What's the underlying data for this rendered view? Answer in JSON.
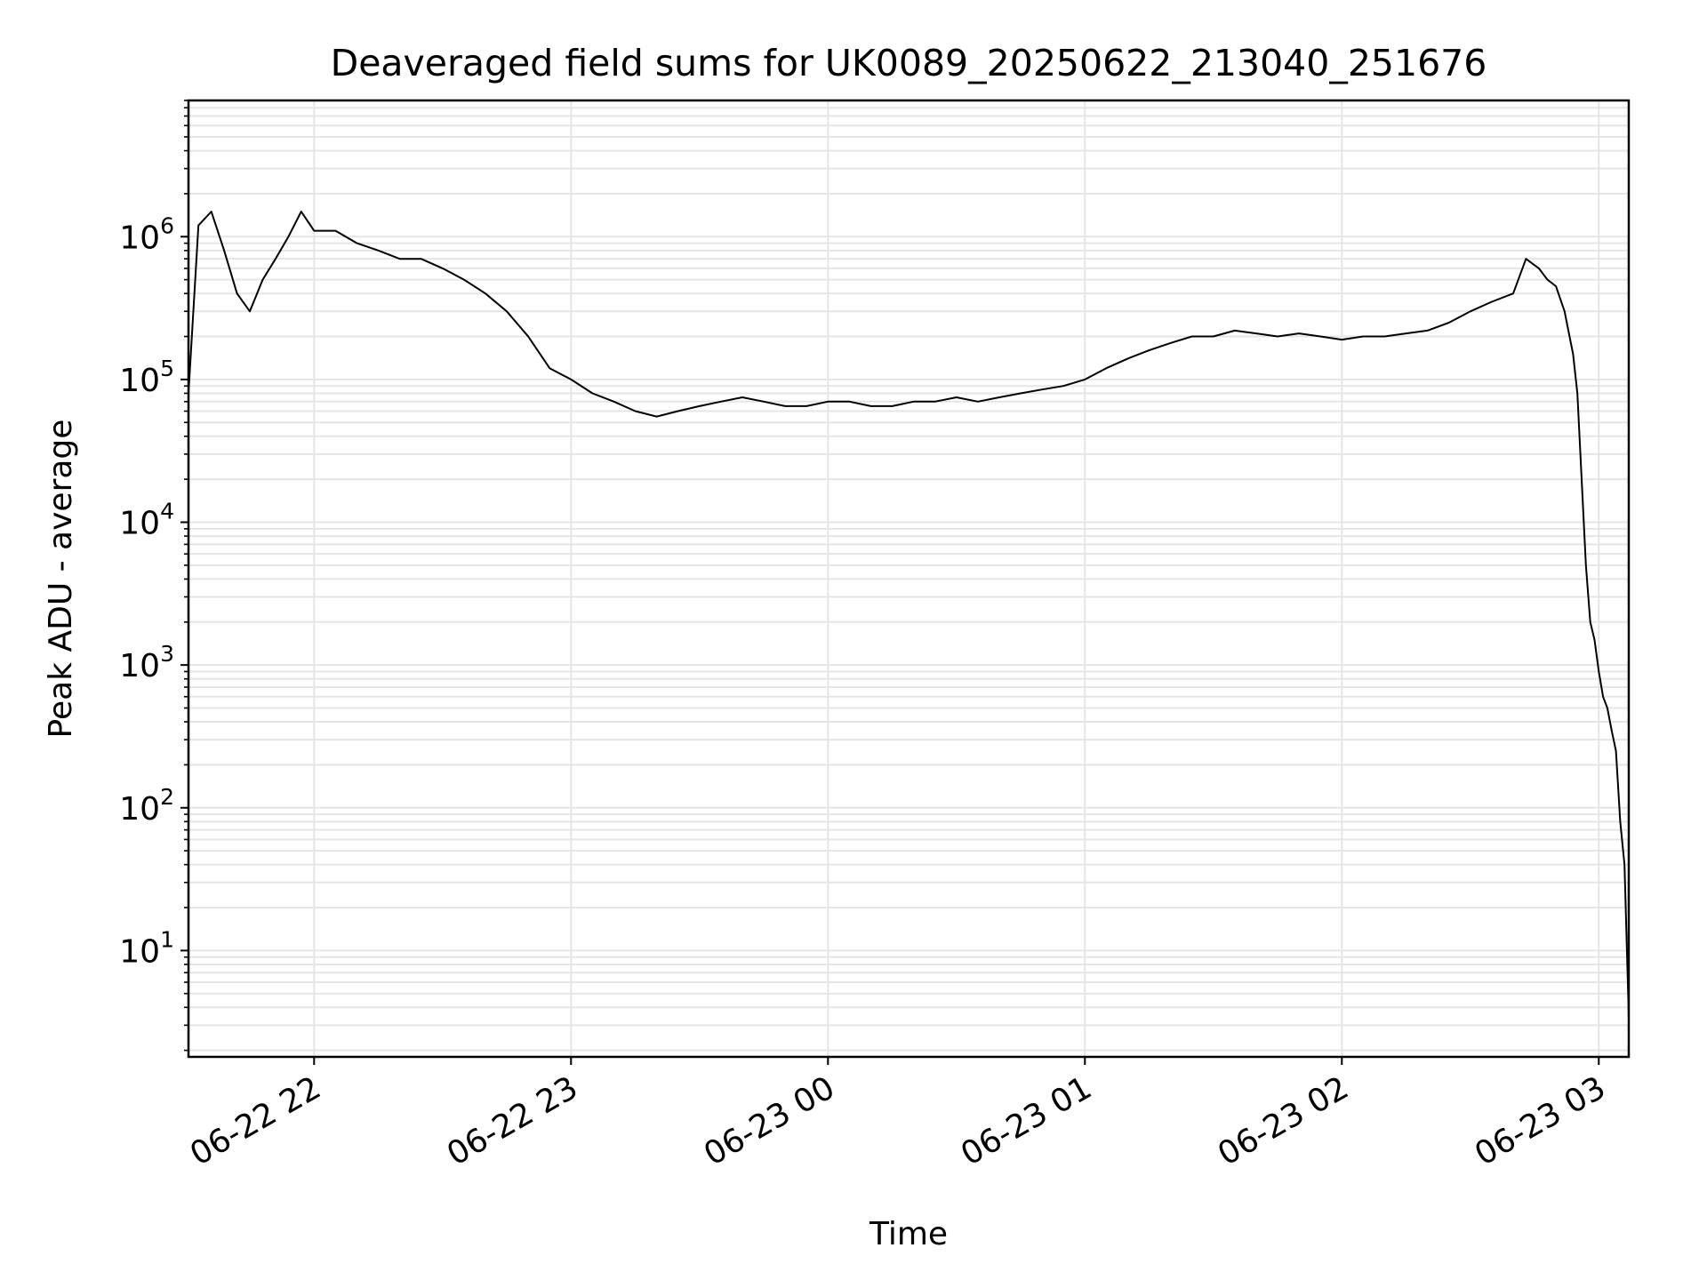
{
  "chart_data": {
    "type": "line",
    "title": "Deaveraged field sums for UK0089_20250622_213040_251676",
    "xlabel": "Time",
    "ylabel": "Peak ADU - average",
    "xscale": "time",
    "yscale": "log",
    "xlim": [
      "2025-06-22 21:30:40",
      "2025-06-23 03:07:00"
    ],
    "ylim": [
      1.8,
      9000000
    ],
    "grid": true,
    "legend": "none",
    "line_color": "#000000",
    "grid_color": "#e5e5e5",
    "x_ticks": [
      {
        "value": "2025-06-22 22:00",
        "label": "06-22 22"
      },
      {
        "value": "2025-06-22 23:00",
        "label": "06-22 23"
      },
      {
        "value": "2025-06-23 00:00",
        "label": "06-23 00"
      },
      {
        "value": "2025-06-23 01:00",
        "label": "06-23 01"
      },
      {
        "value": "2025-06-23 02:00",
        "label": "06-23 02"
      },
      {
        "value": "2025-06-23 03:00",
        "label": "06-23 03"
      }
    ],
    "y_ticks": [
      {
        "value": 10,
        "base": "10",
        "exp": "1"
      },
      {
        "value": 100,
        "base": "10",
        "exp": "2"
      },
      {
        "value": 1000,
        "base": "10",
        "exp": "3"
      },
      {
        "value": 10000,
        "base": "10",
        "exp": "4"
      },
      {
        "value": 100000,
        "base": "10",
        "exp": "5"
      },
      {
        "value": 1000000,
        "base": "10",
        "exp": "6"
      }
    ],
    "series": [
      {
        "x": [
          "2025-06-22 21:30:40",
          "2025-06-22 21:33",
          "2025-06-22 21:36",
          "2025-06-22 21:39",
          "2025-06-22 21:42",
          "2025-06-22 21:45",
          "2025-06-22 21:48",
          "2025-06-22 21:51",
          "2025-06-22 21:54",
          "2025-06-22 21:57",
          "2025-06-22 22:00",
          "2025-06-22 22:05",
          "2025-06-22 22:10",
          "2025-06-22 22:15",
          "2025-06-22 22:20",
          "2025-06-22 22:25",
          "2025-06-22 22:30",
          "2025-06-22 22:35",
          "2025-06-22 22:40",
          "2025-06-22 22:45",
          "2025-06-22 22:50",
          "2025-06-22 22:55",
          "2025-06-22 23:00",
          "2025-06-22 23:05",
          "2025-06-22 23:10",
          "2025-06-22 23:15",
          "2025-06-22 23:20",
          "2025-06-22 23:25",
          "2025-06-22 23:30",
          "2025-06-22 23:35",
          "2025-06-22 23:40",
          "2025-06-22 23:45",
          "2025-06-22 23:50",
          "2025-06-22 23:55",
          "2025-06-23 00:00",
          "2025-06-23 00:05",
          "2025-06-23 00:10",
          "2025-06-23 00:15",
          "2025-06-23 00:20",
          "2025-06-23 00:25",
          "2025-06-23 00:30",
          "2025-06-23 00:35",
          "2025-06-23 00:40",
          "2025-06-23 00:45",
          "2025-06-23 00:50",
          "2025-06-23 00:55",
          "2025-06-23 01:00",
          "2025-06-23 01:05",
          "2025-06-23 01:10",
          "2025-06-23 01:15",
          "2025-06-23 01:20",
          "2025-06-23 01:25",
          "2025-06-23 01:30",
          "2025-06-23 01:35",
          "2025-06-23 01:40",
          "2025-06-23 01:45",
          "2025-06-23 01:50",
          "2025-06-23 01:55",
          "2025-06-23 02:00",
          "2025-06-23 02:05",
          "2025-06-23 02:10",
          "2025-06-23 02:15",
          "2025-06-23 02:20",
          "2025-06-23 02:25",
          "2025-06-23 02:30",
          "2025-06-23 02:35",
          "2025-06-23 02:40",
          "2025-06-23 02:43",
          "2025-06-23 02:46",
          "2025-06-23 02:48",
          "2025-06-23 02:50",
          "2025-06-23 02:52",
          "2025-06-23 02:54",
          "2025-06-23 02:55",
          "2025-06-23 02:56",
          "2025-06-23 02:57",
          "2025-06-23 02:58",
          "2025-06-23 02:59",
          "2025-06-23 03:00",
          "2025-06-23 03:01",
          "2025-06-23 03:02",
          "2025-06-23 03:03",
          "2025-06-23 03:04",
          "2025-06-23 03:05",
          "2025-06-23 03:06",
          "2025-06-23 03:07"
        ],
        "y": [
          80000,
          1200000,
          1500000,
          800000,
          400000,
          300000,
          500000,
          700000,
          1000000,
          1500000,
          1100000,
          1100000,
          900000,
          800000,
          700000,
          700000,
          600000,
          500000,
          400000,
          300000,
          200000,
          120000,
          100000,
          80000,
          70000,
          60000,
          55000,
          60000,
          65000,
          70000,
          75000,
          70000,
          65000,
          65000,
          70000,
          70000,
          65000,
          65000,
          70000,
          70000,
          75000,
          70000,
          75000,
          80000,
          85000,
          90000,
          100000,
          120000,
          140000,
          160000,
          180000,
          200000,
          200000,
          220000,
          210000,
          200000,
          210000,
          200000,
          190000,
          200000,
          200000,
          210000,
          220000,
          250000,
          300000,
          350000,
          400000,
          700000,
          600000,
          500000,
          450000,
          300000,
          150000,
          80000,
          20000,
          5000,
          2000,
          1500,
          900,
          600,
          500,
          350,
          250,
          80,
          40,
          3.5
        ]
      }
    ]
  }
}
